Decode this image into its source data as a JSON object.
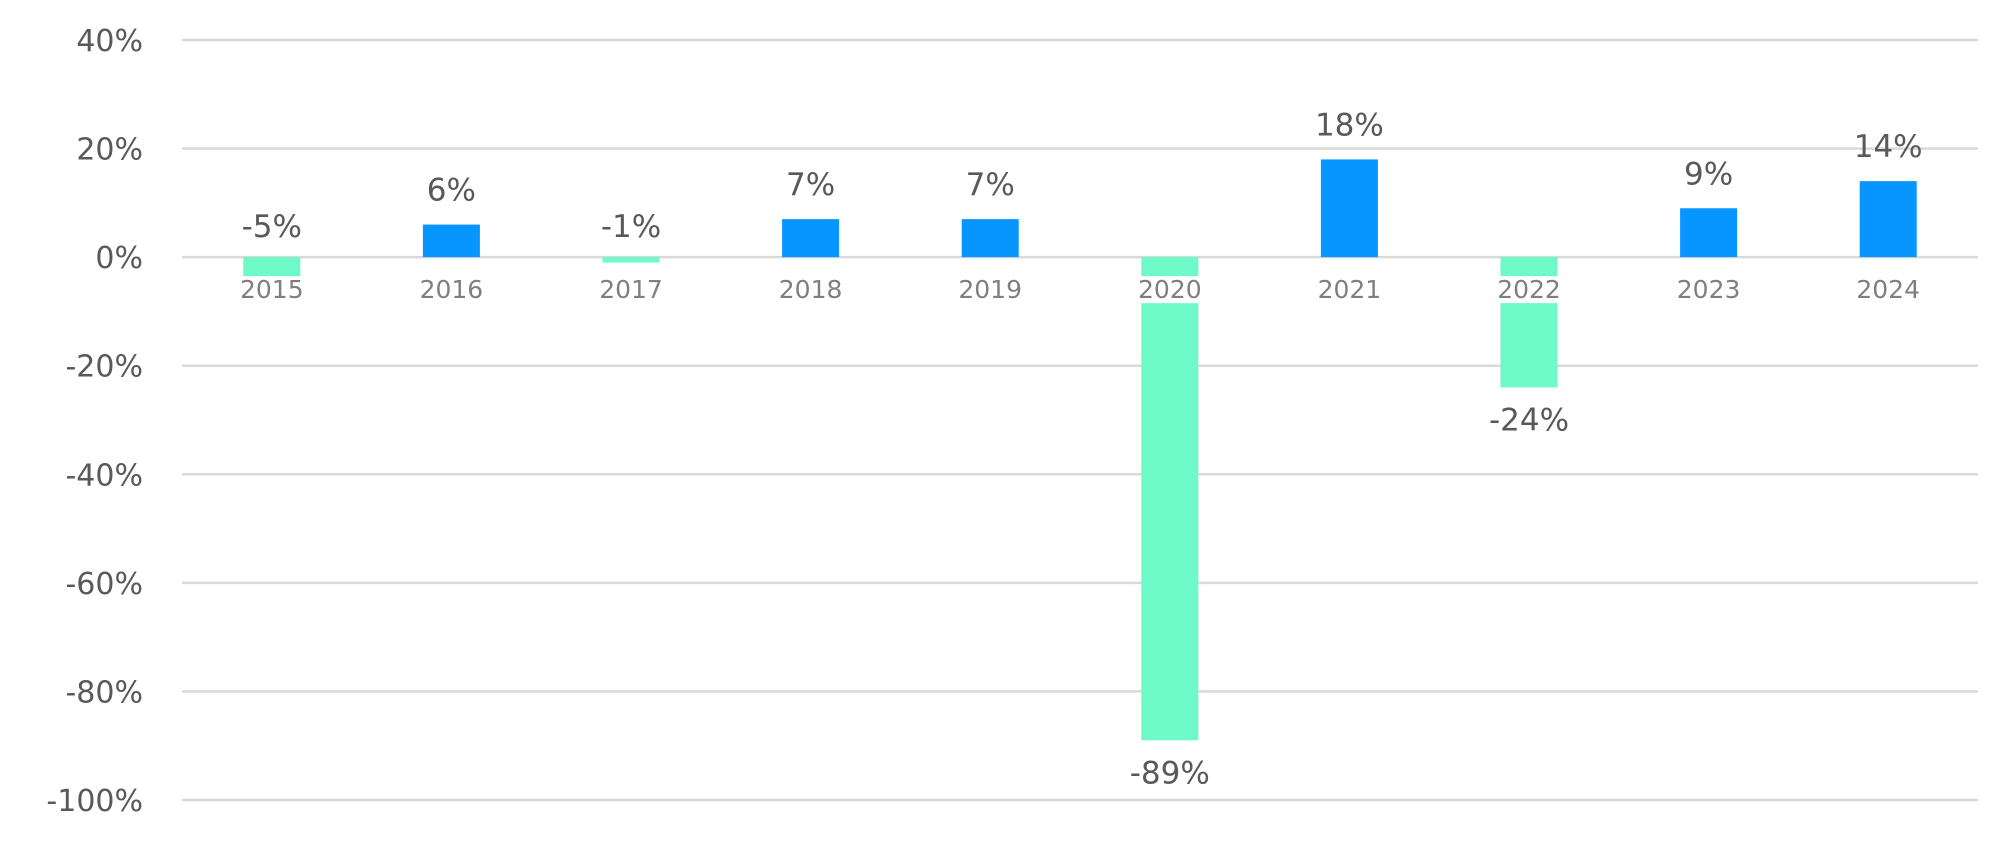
{
  "chart_data": {
    "type": "bar",
    "categories": [
      "2015",
      "2016",
      "2017",
      "2018",
      "2019",
      "2020",
      "2021",
      "2022",
      "2023",
      "2024"
    ],
    "values": [
      -5,
      6,
      -1,
      7,
      7,
      -89,
      18,
      -24,
      9,
      14
    ],
    "data_labels": [
      "-5%",
      "6%",
      "-1%",
      "7%",
      "7%",
      "-89%",
      "18%",
      "-24%",
      "9%",
      "14%"
    ],
    "ylim": [
      -100,
      40
    ],
    "yticks": [
      40,
      20,
      0,
      -20,
      -40,
      -60,
      -80,
      -100
    ],
    "ytick_labels": [
      "40%",
      "20%",
      "0%",
      "-20%",
      "-40%",
      "-60%",
      "-80%",
      "-100%"
    ],
    "grid": true,
    "legend": "none",
    "colors": {
      "positive": "#0795FF",
      "negative": "#6EF9C8",
      "gridline": "#D9D9D9",
      "tick_text": "#595959",
      "category_text": "#7F7F7F"
    }
  }
}
